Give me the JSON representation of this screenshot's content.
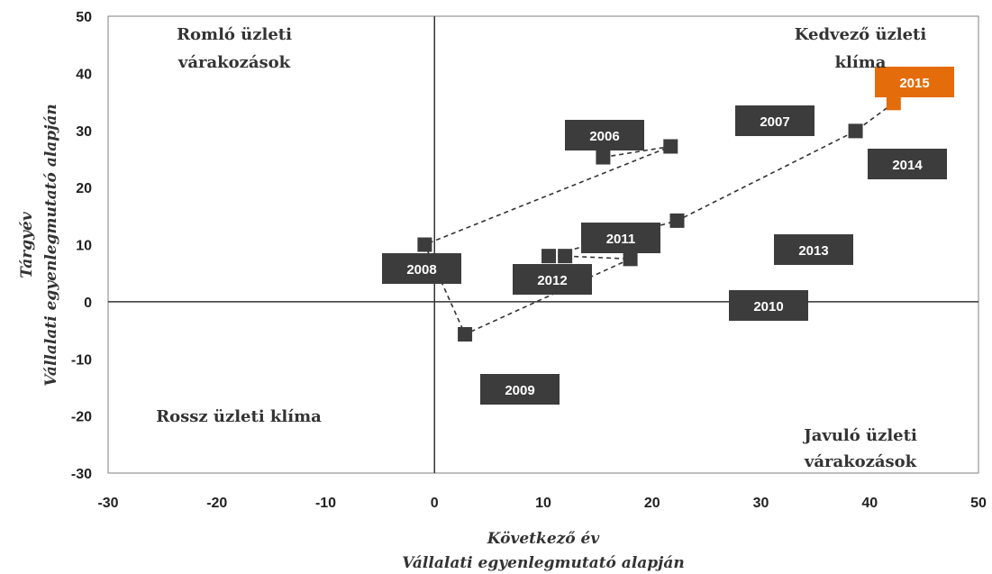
{
  "chart_data": {
    "type": "scatter",
    "title": "",
    "x_axis": {
      "title_line1": "Következő év",
      "title_line2": "Vállalati egyenlegmutató alapján",
      "min": -30,
      "max": 50,
      "step": 10,
      "ticks": [
        "-30",
        "-20",
        "-10",
        "0",
        "10",
        "20",
        "30",
        "40",
        "50"
      ]
    },
    "y_axis": {
      "title_line1": "Tárgyév",
      "title_line2": "Vállalati egyenlegmutató alapján",
      "min": -30,
      "max": 50,
      "step": 10,
      "ticks": [
        "-30",
        "-20",
        "-10",
        "0",
        "10",
        "20",
        "30",
        "40",
        "50"
      ]
    },
    "grid": false,
    "legend": "none",
    "quadrant_labels": [
      {
        "id": "top-left",
        "lines": [
          "Romló üzleti",
          "várakozások"
        ]
      },
      {
        "id": "top-right",
        "lines": [
          "Kedvező üzleti",
          "klíma"
        ]
      },
      {
        "id": "bottom-left",
        "lines": [
          "Rossz üzleti klíma"
        ]
      },
      {
        "id": "bottom-right",
        "lines": [
          "Javuló üzleti",
          "várakozások"
        ]
      }
    ],
    "marker_color": "#3c3c3c",
    "highlight_color": "#e46c0a",
    "points": [
      {
        "year": "2006",
        "x": 15.5,
        "y": 25.3
      },
      {
        "year": "2007",
        "x": 21.7,
        "y": 27.2
      },
      {
        "year": "2008",
        "x": -0.9,
        "y": 10.0
      },
      {
        "year": "2009",
        "x": 2.8,
        "y": -5.7
      },
      {
        "year": "2010",
        "x": 18.0,
        "y": 7.5
      },
      {
        "year": "2011",
        "x": 12.0,
        "y": 8.0
      },
      {
        "year": "2012",
        "x": 10.5,
        "y": 8.0
      },
      {
        "year": "2013",
        "x": 22.3,
        "y": 14.2
      },
      {
        "year": "2014",
        "x": 38.7,
        "y": 29.9
      },
      {
        "year": "2015",
        "x": 42.2,
        "y": 34.8,
        "highlight": true
      }
    ],
    "path_order": [
      "2006",
      "2007",
      "2008",
      "2009",
      "2010",
      "2011",
      "2012",
      "2013",
      "2014",
      "2015"
    ]
  }
}
